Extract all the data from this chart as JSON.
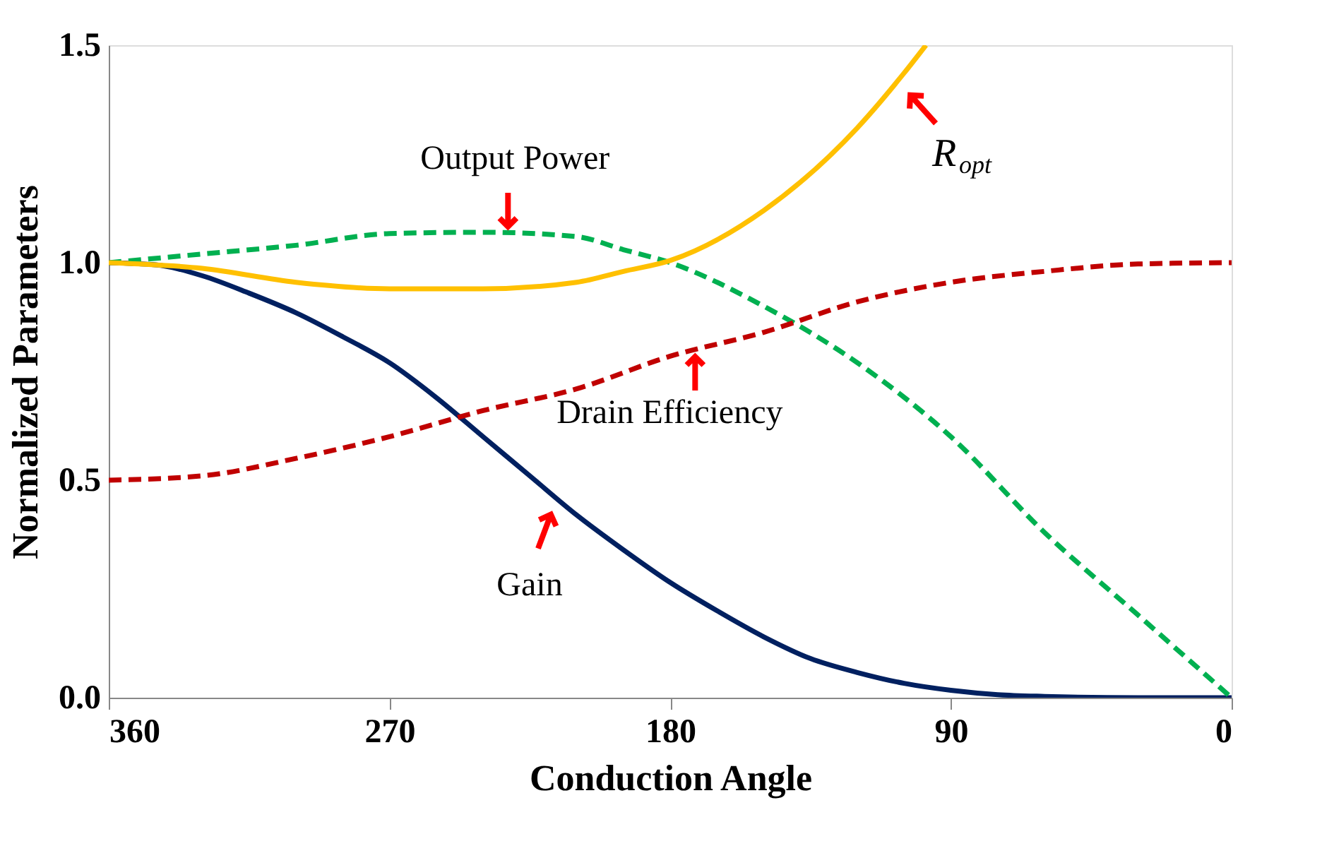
{
  "chart_data": {
    "type": "line",
    "xlabel": "Conduction Angle",
    "ylabel": "Normalized Parameters",
    "xlim": [
      360,
      0
    ],
    "ylim": [
      0,
      1.5
    ],
    "xticks": [
      360,
      270,
      180,
      90,
      0
    ],
    "yticks": [
      {
        "value": 0,
        "label": "0.0"
      },
      {
        "value": 0.5,
        "label": "0.5"
      },
      {
        "value": 1,
        "label": "1.0"
      },
      {
        "value": 1.5,
        "label": "1.5"
      }
    ],
    "grid": false,
    "marker": "none",
    "series": [
      {
        "color": "#002060",
        "line_style": "solid",
        "x": [
          360,
          345,
          330,
          315,
          300,
          285,
          270,
          255,
          240,
          225,
          210,
          195,
          180,
          165,
          150,
          135,
          120,
          105,
          90,
          75,
          60,
          30,
          0
        ],
        "values": [
          1.0,
          0.995,
          0.97,
          0.93,
          0.885,
          0.83,
          0.77,
          0.69,
          0.6,
          0.51,
          0.42,
          0.34,
          0.265,
          0.2,
          0.14,
          0.09,
          0.058,
          0.033,
          0.017,
          0.007,
          0.003,
          0.0,
          0.0
        ]
      },
      {
        "color": "#00b050",
        "line_style": "dashed",
        "x": [
          360,
          330,
          300,
          270,
          240,
          210,
          195,
          180,
          150,
          120,
          90,
          60,
          30,
          0
        ],
        "values": [
          1.0,
          1.02,
          1.04,
          1.067,
          1.07,
          1.06,
          1.03,
          1.0,
          0.9,
          0.77,
          0.6,
          0.38,
          0.19,
          0.0
        ]
      },
      {
        "color": "#c00000",
        "line_style": "dashed",
        "x": [
          360,
          330,
          300,
          270,
          240,
          210,
          180,
          150,
          120,
          90,
          60,
          30,
          0
        ],
        "values": [
          0.5,
          0.51,
          0.55,
          0.6,
          0.66,
          0.71,
          0.785,
          0.84,
          0.91,
          0.955,
          0.98,
          0.997,
          1.0
        ]
      },
      {
        "color": "#ffc000",
        "line_style": "solid",
        "x": [
          360,
          330,
          300,
          270,
          240,
          210,
          195,
          180,
          150,
          120,
          105,
          98
        ],
        "values": [
          1.0,
          0.987,
          0.955,
          0.94,
          0.94,
          0.955,
          0.98,
          1.005,
          1.12,
          1.31,
          1.436,
          1.5
        ]
      }
    ],
    "annotations": [
      {
        "text": "Output Power",
        "x": 232,
        "y": 1.07
      },
      {
        "text": "R$_{opt}$",
        "x": 103,
        "y": 1.45
      },
      {
        "text": "Drain Efficiency",
        "x": 172,
        "y": 0.81
      },
      {
        "text": "Gain",
        "x": 216,
        "y": 0.46
      }
    ]
  }
}
